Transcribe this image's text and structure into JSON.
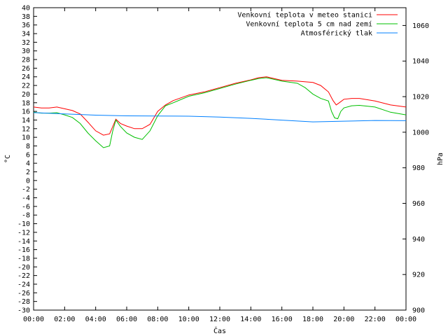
{
  "chart_data": {
    "type": "line",
    "xlabel": "Čas",
    "ylabel": "°C",
    "y2label": "hPa",
    "x_ticks": [
      "00:00",
      "02:00",
      "04:00",
      "06:00",
      "08:00",
      "10:00",
      "12:00",
      "14:00",
      "16:00",
      "18:00",
      "20:00",
      "22:00",
      "00:00"
    ],
    "x_range_hours": [
      0,
      24
    ],
    "ylim": [
      -30,
      40
    ],
    "y_ticks": [
      40,
      38,
      36,
      34,
      32,
      30,
      28,
      26,
      24,
      22,
      20,
      18,
      16,
      14,
      12,
      10,
      8,
      6,
      4,
      2,
      0,
      -2,
      -4,
      -6,
      -8,
      -10,
      -12,
      -14,
      -16,
      -18,
      -20,
      -22,
      -24,
      -26,
      -28,
      -30
    ],
    "y2lim": [
      900,
      1070
    ],
    "y2_ticks": [
      1060,
      1040,
      1020,
      1000,
      980,
      960,
      940,
      920,
      900
    ],
    "grid": false,
    "legend_position": "top-right",
    "colors": {
      "red": "#ff0000",
      "green": "#00c000",
      "blue": "#0080ff"
    },
    "series": [
      {
        "name": "Venkovní teplota v meteo stanici",
        "axis": "left",
        "color": "#ff0000",
        "x": [
          0,
          0.5,
          1,
          1.5,
          2,
          2.5,
          3,
          3.5,
          4,
          4.5,
          4.9,
          5.1,
          5.3,
          5.6,
          6,
          6.5,
          7,
          7.5,
          8,
          8.5,
          9,
          10,
          11,
          12,
          13,
          14,
          14.5,
          15,
          15.5,
          16,
          17,
          18,
          18.5,
          19,
          19.3,
          19.5,
          19.7,
          20,
          20.5,
          21,
          22,
          23,
          24
        ],
        "y": [
          17,
          16.8,
          16.8,
          17,
          16.6,
          16.2,
          15.4,
          13.5,
          11.5,
          10.5,
          10.8,
          12.5,
          14.2,
          13.2,
          12.6,
          12,
          12,
          13,
          16,
          17.5,
          18.5,
          19.8,
          20.5,
          21.5,
          22.5,
          23.3,
          23.8,
          24,
          23.6,
          23.2,
          23,
          22.7,
          22,
          20.5,
          18.5,
          17.5,
          18,
          18.8,
          19,
          19,
          18.4,
          17.5,
          17
        ]
      },
      {
        "name": "Venkovní teplota 5 cm nad zemí",
        "axis": "left",
        "color": "#00c000",
        "x": [
          0,
          0.5,
          1,
          1.5,
          2,
          2.5,
          3,
          3.5,
          4,
          4.5,
          4.9,
          5.1,
          5.3,
          5.6,
          6,
          6.5,
          7,
          7.5,
          8,
          8.5,
          9,
          10,
          11,
          12,
          13,
          14,
          14.5,
          15,
          15.5,
          16,
          17,
          17.5,
          18,
          18.5,
          19,
          19.2,
          19.4,
          19.6,
          19.8,
          20,
          20.5,
          21,
          22,
          23,
          24
        ],
        "y": [
          15.8,
          15.6,
          15.6,
          15.7,
          15.2,
          14.6,
          13.2,
          11,
          9.2,
          7.6,
          8,
          11.5,
          14,
          12.5,
          11,
          10,
          9.5,
          11.5,
          15,
          17.3,
          18,
          19.5,
          20.3,
          21.3,
          22.3,
          23.2,
          23.6,
          23.8,
          23.4,
          23,
          22.5,
          21.5,
          20,
          19,
          18.4,
          16,
          14.5,
          14.3,
          16,
          16.8,
          17.3,
          17.4,
          17,
          15.8,
          15.2
        ]
      },
      {
        "name": "Atmosférický tlak",
        "axis": "right",
        "color": "#0080ff",
        "x": [
          0,
          2,
          4,
          6,
          8,
          10,
          12,
          14,
          16,
          18,
          20,
          22,
          24
        ],
        "y": [
          1011,
          1010.3,
          1009.6,
          1009.2,
          1009.1,
          1009,
          1008.5,
          1007.8,
          1006.8,
          1005.8,
          1006.2,
          1006.6,
          1006.5
        ]
      }
    ]
  }
}
